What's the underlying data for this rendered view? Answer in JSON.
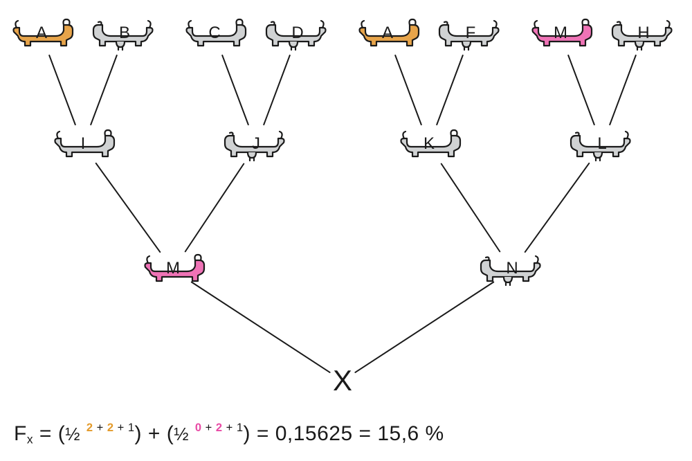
{
  "colors": {
    "orange": "#e7a44a",
    "pink": "#ef73b6",
    "gray": "#d0d2d3",
    "grayDark": "#b8b9ba",
    "lineStroke": "#1a1a1a",
    "outline": "#1a1a1a",
    "bg": "#ffffff",
    "formulaOrange": "#e39a2a",
    "formulaPink": "#e84aa5"
  },
  "typography": {
    "labelFontSize": 24,
    "formulaFontSize": 30,
    "xFontSize": 42
  },
  "lineWidth": 2,
  "outlineWidth": 2.2,
  "layout": {
    "rowY": {
      "r1": 50,
      "r2": 210,
      "r3": 390,
      "r4": 550
    },
    "r1X": [
      60,
      180,
      310,
      430,
      560,
      680,
      810,
      930
    ],
    "r2X": [
      120,
      370,
      620,
      870
    ],
    "r3X": [
      250,
      740
    ],
    "r4X": 495
  },
  "nodes": {
    "r1": [
      {
        "id": "A1",
        "label": "A",
        "type": "bull",
        "colorKey": "orange"
      },
      {
        "id": "B",
        "label": "B",
        "type": "cow",
        "colorKey": "gray"
      },
      {
        "id": "C",
        "label": "C",
        "type": "bull",
        "colorKey": "gray"
      },
      {
        "id": "D",
        "label": "D",
        "type": "cow",
        "colorKey": "gray"
      },
      {
        "id": "A2",
        "label": "A",
        "type": "bull",
        "colorKey": "orange"
      },
      {
        "id": "F",
        "label": "F",
        "type": "cow",
        "colorKey": "gray"
      },
      {
        "id": "M0",
        "label": "M",
        "type": "bull",
        "colorKey": "pink"
      },
      {
        "id": "H",
        "label": "H",
        "type": "cow",
        "colorKey": "gray"
      }
    ],
    "r2": [
      {
        "id": "I",
        "label": "I",
        "type": "bull",
        "colorKey": "gray"
      },
      {
        "id": "J",
        "label": "J",
        "type": "cow",
        "colorKey": "gray"
      },
      {
        "id": "K",
        "label": "K",
        "type": "bull",
        "colorKey": "gray"
      },
      {
        "id": "L",
        "label": "L",
        "type": "cow",
        "colorKey": "gray"
      }
    ],
    "r3": [
      {
        "id": "M",
        "label": "M",
        "type": "bull",
        "colorKey": "pink"
      },
      {
        "id": "N",
        "label": "N",
        "type": "cow",
        "colorKey": "gray"
      }
    ],
    "x": {
      "label": "X"
    }
  },
  "edges": [
    {
      "from": "A1",
      "to": "I"
    },
    {
      "from": "B",
      "to": "I"
    },
    {
      "from": "C",
      "to": "J"
    },
    {
      "from": "D",
      "to": "J"
    },
    {
      "from": "A2",
      "to": "K"
    },
    {
      "from": "F",
      "to": "K"
    },
    {
      "from": "M0",
      "to": "L"
    },
    {
      "from": "H",
      "to": "L"
    },
    {
      "from": "I",
      "to": "M"
    },
    {
      "from": "J",
      "to": "M"
    },
    {
      "from": "K",
      "to": "N"
    },
    {
      "from": "L",
      "to": "N"
    },
    {
      "from": "M",
      "to": "X"
    },
    {
      "from": "N",
      "to": "X"
    }
  ],
  "formula": {
    "symbol": "F",
    "sub": "x",
    "eq1": " = (",
    "half": "½",
    "sp": " ",
    "exp1": {
      "a": "2",
      "op1": " + ",
      "b": "2",
      "op2": " + ",
      "c": "1"
    },
    "mid": ") + (",
    "exp2": {
      "a": "0",
      "op1": " + ",
      "b": "2",
      "op2": " + ",
      "c": "1"
    },
    "tail": ") = 0,15625 = 15,6 %"
  }
}
